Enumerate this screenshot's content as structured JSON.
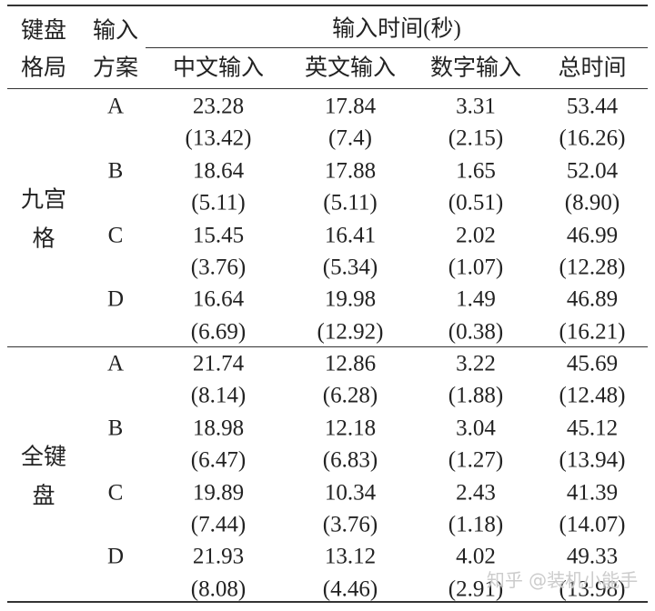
{
  "header": {
    "layout": [
      "键盘",
      "格局"
    ],
    "scheme": [
      "输入",
      "方案"
    ],
    "time": "输入时间(秒)",
    "columns": [
      "中文输入",
      "英文输入",
      "数字输入",
      "总时间"
    ]
  },
  "groups": [
    {
      "label": [
        "九宫",
        "格"
      ],
      "rows": [
        {
          "scheme": "A",
          "means": [
            23.28,
            17.84,
            3.31,
            53.44
          ],
          "sds": [
            "(13.42)",
            "(7.4)",
            "(2.15)",
            "(16.26)"
          ]
        },
        {
          "scheme": "B",
          "means": [
            18.64,
            17.88,
            1.65,
            52.04
          ],
          "sds": [
            "(5.11)",
            "(5.11)",
            "(0.51)",
            "(8.90)"
          ]
        },
        {
          "scheme": "C",
          "means": [
            15.45,
            16.41,
            2.02,
            46.99
          ],
          "sds": [
            "(3.76)",
            "(5.34)",
            "(1.07)",
            "(12.28)"
          ]
        },
        {
          "scheme": "D",
          "means": [
            16.64,
            19.98,
            1.49,
            46.89
          ],
          "sds": [
            "(6.69)",
            "(12.92)",
            "(0.38)",
            "(16.21)"
          ]
        }
      ]
    },
    {
      "label": [
        "全键",
        "盘"
      ],
      "rows": [
        {
          "scheme": "A",
          "means": [
            21.74,
            12.86,
            3.22,
            45.69
          ],
          "sds": [
            "(8.14)",
            "(6.28)",
            "(1.88)",
            "(12.48)"
          ]
        },
        {
          "scheme": "B",
          "means": [
            18.98,
            12.18,
            3.04,
            45.12
          ],
          "sds": [
            "(6.47)",
            "(6.83)",
            "(1.27)",
            "(13.94)"
          ]
        },
        {
          "scheme": "C",
          "means": [
            19.89,
            10.34,
            2.43,
            41.39
          ],
          "sds": [
            "(7.44)",
            "(3.76)",
            "(1.18)",
            "(14.07)"
          ]
        },
        {
          "scheme": "D",
          "means": [
            21.93,
            13.12,
            4.02,
            49.33
          ],
          "sds": [
            "(8.08)",
            "(4.46)",
            "(2.91)",
            "(13.98)"
          ]
        }
      ]
    }
  ],
  "watermark": "知乎 @装机小能手"
}
